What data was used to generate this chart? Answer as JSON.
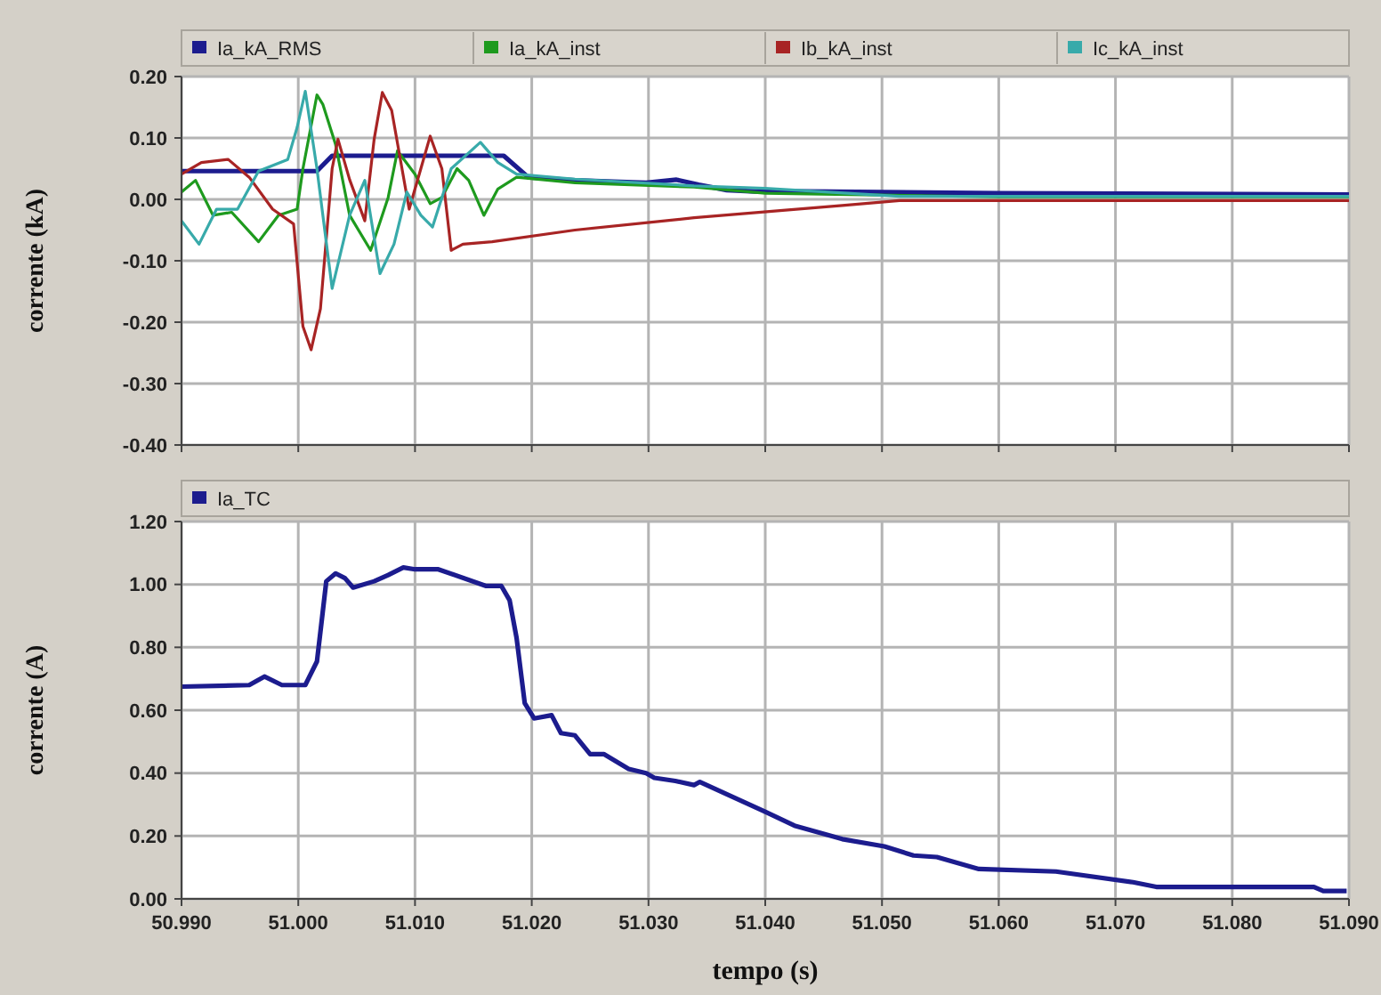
{
  "chart_data": [
    {
      "type": "line",
      "ylabel": "corrente (kA)",
      "xlim": [
        50.99,
        51.09
      ],
      "ylim": [
        -0.4,
        0.2
      ],
      "xticks": [
        {
          "value": 50.99,
          "label": null
        },
        {
          "value": 51.0,
          "label": null
        },
        {
          "value": 51.01,
          "label": null
        },
        {
          "value": 51.02,
          "label": null
        },
        {
          "value": 51.03,
          "label": null
        },
        {
          "value": 51.04,
          "label": null
        },
        {
          "value": 51.05,
          "label": null
        },
        {
          "value": 51.06,
          "label": null
        },
        {
          "value": 51.07,
          "label": null
        },
        {
          "value": 51.08,
          "label": null
        },
        {
          "value": 51.09,
          "label": null
        }
      ],
      "yticks": [
        {
          "value": 0.2,
          "label": "0.20"
        },
        {
          "value": 0.1,
          "label": "0.10"
        },
        {
          "value": 0,
          "label": "0.00"
        },
        {
          "value": -0.1,
          "label": "-0.10"
        },
        {
          "value": -0.2,
          "label": "-0.20"
        },
        {
          "value": -0.3,
          "label": "-0.30"
        },
        {
          "value": -0.4,
          "label": "-0.40"
        }
      ],
      "tick_labels": "y",
      "grid": true,
      "legend": "top",
      "series": [
        {
          "name": "Ia_kA_RMS",
          "color": "#1c1c8e",
          "x": [
            50.99,
            51.0016,
            51.0029,
            51.0176,
            51.0197,
            51.0237,
            51.0298,
            51.0324,
            51.0343,
            51.0367,
            51.0391,
            51.0437,
            51.06,
            51.09
          ],
          "values": [
            0.046,
            0.046,
            0.071,
            0.071,
            0.036,
            0.031,
            0.027,
            0.032,
            0.024,
            0.015,
            0.013,
            0.013,
            0.01,
            0.008
          ]
        },
        {
          "name": "Ia_kA_inst",
          "color": "#1e9a1e",
          "x": [
            50.99,
            50.9912,
            50.9927,
            50.9943,
            50.9966,
            50.9983,
            50.9999,
            51.0004,
            51.0016,
            51.0021,
            51.0032,
            51.0044,
            51.0062,
            51.0077,
            51.0085,
            51.01,
            51.0113,
            51.0123,
            51.0136,
            51.0146,
            51.0159,
            51.0171,
            51.0187,
            51.0237,
            51.0339,
            51.04,
            51.06,
            51.09
          ],
          "values": [
            0.012,
            0.031,
            -0.026,
            -0.021,
            -0.069,
            -0.026,
            -0.016,
            0.05,
            0.17,
            0.155,
            0.089,
            -0.026,
            -0.083,
            0.003,
            0.079,
            0.041,
            -0.007,
            0.003,
            0.05,
            0.031,
            -0.026,
            0.017,
            0.036,
            0.027,
            0.02,
            0.01,
            0.004,
            0.004
          ]
        },
        {
          "name": "Ib_kA_inst",
          "color": "#a82424",
          "x": [
            50.99,
            50.9917,
            50.994,
            50.9958,
            50.9978,
            50.9996,
            51.0004,
            51.0011,
            51.0019,
            51.0029,
            51.0034,
            51.0044,
            51.0057,
            51.0065,
            51.0072,
            51.008,
            51.0095,
            51.0105,
            51.0113,
            51.0123,
            51.0131,
            51.0141,
            51.0166,
            51.0237,
            51.0339,
            51.0415,
            51.0466,
            51.0515,
            51.09
          ],
          "values": [
            0.041,
            0.06,
            0.065,
            0.036,
            -0.016,
            -0.04,
            -0.207,
            -0.245,
            -0.178,
            0.05,
            0.098,
            0.032,
            -0.035,
            0.098,
            0.174,
            0.145,
            -0.016,
            0.05,
            0.103,
            0.05,
            -0.083,
            -0.073,
            -0.069,
            -0.05,
            -0.03,
            -0.018,
            -0.01,
            -0.002,
            -0.002
          ]
        },
        {
          "name": "Ic_kA_inst",
          "color": "#38aaaa",
          "x": [
            50.99,
            50.9915,
            50.993,
            50.9948,
            50.9966,
            50.9991,
            50.9999,
            51.0006,
            51.0016,
            51.0029,
            51.0044,
            51.0057,
            51.007,
            51.0082,
            51.0093,
            51.0105,
            51.0115,
            51.0131,
            51.0156,
            51.0171,
            51.0187,
            51.0237,
            51.0339,
            51.04,
            51.0515,
            51.09
          ],
          "values": [
            -0.035,
            -0.073,
            -0.016,
            -0.016,
            0.046,
            0.065,
            0.117,
            0.176,
            0.05,
            -0.145,
            -0.026,
            0.031,
            -0.121,
            -0.073,
            0.012,
            -0.026,
            -0.045,
            0.05,
            0.093,
            0.06,
            0.041,
            0.033,
            0.022,
            0.018,
            0.005,
            0.005
          ]
        }
      ]
    },
    {
      "type": "line",
      "ylabel": "corrente (A)",
      "xlabel": "tempo (s)",
      "xlim": [
        50.99,
        51.09
      ],
      "ylim": [
        0,
        1.2
      ],
      "xticks": [
        {
          "value": 50.99,
          "label": "50.990"
        },
        {
          "value": 51.0,
          "label": "51.000"
        },
        {
          "value": 51.01,
          "label": "51.010"
        },
        {
          "value": 51.02,
          "label": "51.020"
        },
        {
          "value": 51.03,
          "label": "51.030"
        },
        {
          "value": 51.04,
          "label": "51.040"
        },
        {
          "value": 51.05,
          "label": "51.050"
        },
        {
          "value": 51.06,
          "label": "51.060"
        },
        {
          "value": 51.07,
          "label": "51.070"
        },
        {
          "value": 51.08,
          "label": "51.080"
        },
        {
          "value": 51.09,
          "label": "51.090"
        }
      ],
      "yticks": [
        {
          "value": 0,
          "label": "0.00"
        },
        {
          "value": 0.2,
          "label": "0.20"
        },
        {
          "value": 0.4,
          "label": "0.40"
        },
        {
          "value": 0.6,
          "label": "0.60"
        },
        {
          "value": 0.8,
          "label": "0.80"
        },
        {
          "value": 1.0,
          "label": "1.00"
        },
        {
          "value": 1.2,
          "label": "1.20"
        }
      ],
      "grid": true,
      "legend": "top",
      "series": [
        {
          "name": "Ia_TC",
          "color": "#1c1c8e",
          "x": [
            50.99,
            50.9958,
            50.9971,
            50.9986,
            51.0006,
            51.0016,
            51.0019,
            51.0024,
            51.0032,
            51.004,
            51.0047,
            51.0065,
            51.0077,
            51.009,
            51.01,
            51.012,
            51.0161,
            51.0174,
            51.0181,
            51.0187,
            51.0194,
            51.0202,
            51.0217,
            51.0225,
            51.0237,
            51.025,
            51.0262,
            51.0283,
            51.0298,
            51.0305,
            51.0323,
            51.0339,
            51.0344,
            51.04,
            51.0425,
            51.0466,
            51.0502,
            51.0527,
            51.0547,
            51.0583,
            51.0649,
            51.0715,
            51.0735,
            51.087,
            51.0878,
            51.0898
          ],
          "values": [
            0.675,
            0.68,
            0.707,
            0.68,
            0.68,
            0.755,
            0.85,
            1.01,
            1.035,
            1.02,
            0.99,
            1.01,
            1.03,
            1.054,
            1.048,
            1.048,
            0.995,
            0.995,
            0.95,
            0.83,
            0.622,
            0.574,
            0.584,
            0.527,
            0.52,
            0.46,
            0.46,
            0.413,
            0.4,
            0.385,
            0.375,
            0.362,
            0.372,
            0.277,
            0.233,
            0.19,
            0.167,
            0.138,
            0.133,
            0.095,
            0.087,
            0.053,
            0.038,
            0.038,
            0.025,
            0.025
          ]
        }
      ]
    }
  ]
}
